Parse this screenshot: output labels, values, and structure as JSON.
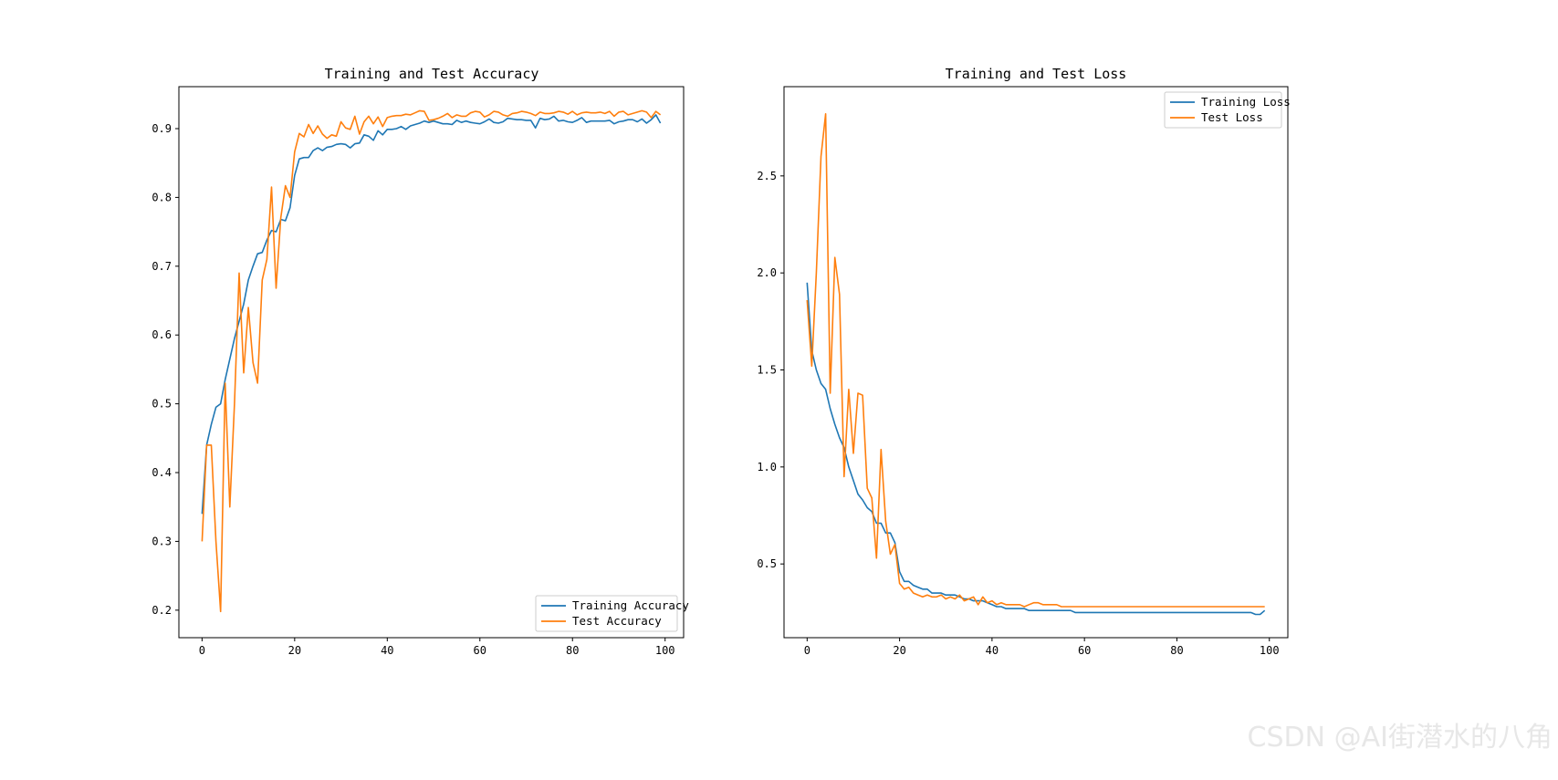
{
  "chart_data": [
    {
      "type": "line",
      "title": "Training and Test Accuracy",
      "xlabel": "",
      "ylabel": "",
      "xlim": [
        -5,
        104
      ],
      "ylim": [
        0.16,
        0.961
      ],
      "xticks": [
        0,
        20,
        40,
        60,
        80,
        100
      ],
      "yticks": [
        0.2,
        0.3,
        0.4,
        0.5,
        0.6,
        0.7,
        0.8,
        0.9
      ],
      "legend_position": "lower-right",
      "grid": false,
      "series": [
        {
          "name": "Training Accuracy",
          "color": "#1f77b4",
          "x": [
            0,
            1,
            2,
            3,
            4,
            5,
            6,
            7,
            8,
            9,
            10,
            11,
            12,
            13,
            14,
            15,
            16,
            17,
            18,
            19,
            20,
            21,
            22,
            23,
            24,
            25,
            26,
            27,
            28,
            29,
            30,
            31,
            32,
            33,
            34,
            35,
            36,
            37,
            38,
            39,
            40,
            41,
            42,
            43,
            44,
            45,
            46,
            47,
            48,
            49,
            50,
            51,
            52,
            53,
            54,
            55,
            56,
            57,
            58,
            59,
            60,
            61,
            62,
            63,
            64,
            65,
            66,
            67,
            68,
            69,
            70,
            71,
            72,
            73,
            74,
            75,
            76,
            77,
            78,
            79,
            80,
            81,
            82,
            83,
            84,
            85,
            86,
            87,
            88,
            89,
            90,
            91,
            92,
            93,
            94,
            95,
            96,
            97,
            98,
            99
          ],
          "values": [
            0.34,
            0.44,
            0.47,
            0.495,
            0.5,
            0.535,
            0.565,
            0.595,
            0.62,
            0.645,
            0.68,
            0.7,
            0.718,
            0.72,
            0.738,
            0.752,
            0.75,
            0.768,
            0.766,
            0.785,
            0.832,
            0.856,
            0.858,
            0.858,
            0.868,
            0.872,
            0.868,
            0.873,
            0.874,
            0.877,
            0.878,
            0.877,
            0.872,
            0.878,
            0.879,
            0.891,
            0.889,
            0.883,
            0.897,
            0.891,
            0.899,
            0.899,
            0.9,
            0.903,
            0.899,
            0.904,
            0.906,
            0.908,
            0.911,
            0.909,
            0.911,
            0.909,
            0.907,
            0.907,
            0.906,
            0.912,
            0.909,
            0.911,
            0.909,
            0.908,
            0.907,
            0.91,
            0.914,
            0.909,
            0.908,
            0.91,
            0.915,
            0.914,
            0.913,
            0.913,
            0.912,
            0.912,
            0.901,
            0.915,
            0.913,
            0.914,
            0.918,
            0.911,
            0.912,
            0.91,
            0.909,
            0.912,
            0.916,
            0.909,
            0.911,
            0.911,
            0.911,
            0.911,
            0.912,
            0.907,
            0.91,
            0.911,
            0.913,
            0.913,
            0.91,
            0.914,
            0.908,
            0.913,
            0.92,
            0.908
          ]
        },
        {
          "name": "Test Accuracy",
          "color": "#ff7f0e",
          "x": [
            0,
            1,
            2,
            3,
            4,
            5,
            6,
            7,
            8,
            9,
            10,
            11,
            12,
            13,
            14,
            15,
            16,
            17,
            18,
            19,
            20,
            21,
            22,
            23,
            24,
            25,
            26,
            27,
            28,
            29,
            30,
            31,
            32,
            33,
            34,
            35,
            36,
            37,
            38,
            39,
            40,
            41,
            42,
            43,
            44,
            45,
            46,
            47,
            48,
            49,
            50,
            51,
            52,
            53,
            54,
            55,
            56,
            57,
            58,
            59,
            60,
            61,
            62,
            63,
            64,
            65,
            66,
            67,
            68,
            69,
            70,
            71,
            72,
            73,
            74,
            75,
            76,
            77,
            78,
            79,
            80,
            81,
            82,
            83,
            84,
            85,
            86,
            87,
            88,
            89,
            90,
            91,
            92,
            93,
            94,
            95,
            96,
            97,
            98,
            99
          ],
          "values": [
            0.3,
            0.44,
            0.44,
            0.3,
            0.198,
            0.53,
            0.35,
            0.5,
            0.69,
            0.545,
            0.64,
            0.56,
            0.53,
            0.68,
            0.71,
            0.815,
            0.668,
            0.77,
            0.817,
            0.8,
            0.866,
            0.893,
            0.888,
            0.906,
            0.893,
            0.904,
            0.892,
            0.886,
            0.891,
            0.889,
            0.91,
            0.901,
            0.899,
            0.918,
            0.892,
            0.91,
            0.918,
            0.907,
            0.917,
            0.903,
            0.916,
            0.918,
            0.919,
            0.919,
            0.921,
            0.92,
            0.923,
            0.926,
            0.925,
            0.912,
            0.913,
            0.915,
            0.918,
            0.922,
            0.916,
            0.92,
            0.918,
            0.918,
            0.923,
            0.925,
            0.924,
            0.917,
            0.92,
            0.925,
            0.924,
            0.92,
            0.918,
            0.922,
            0.923,
            0.925,
            0.924,
            0.922,
            0.919,
            0.924,
            0.922,
            0.922,
            0.923,
            0.925,
            0.924,
            0.921,
            0.925,
            0.92,
            0.923,
            0.924,
            0.923,
            0.923,
            0.924,
            0.922,
            0.925,
            0.918,
            0.924,
            0.925,
            0.92,
            0.922,
            0.924,
            0.926,
            0.924,
            0.916,
            0.925,
            0.92
          ]
        }
      ]
    },
    {
      "type": "line",
      "title": "Training and Test Loss",
      "xlabel": "",
      "ylabel": "",
      "xlim": [
        -5,
        104
      ],
      "ylim": [
        0.12,
        2.96
      ],
      "xticks": [
        0,
        20,
        40,
        60,
        80,
        100
      ],
      "yticks": [
        0.5,
        1.0,
        1.5,
        2.0,
        2.5
      ],
      "legend_position": "upper-right",
      "grid": false,
      "series": [
        {
          "name": "Training Loss",
          "color": "#1f77b4",
          "x": [
            0,
            1,
            2,
            3,
            4,
            5,
            6,
            7,
            8,
            9,
            10,
            11,
            12,
            13,
            14,
            15,
            16,
            17,
            18,
            19,
            20,
            21,
            22,
            23,
            24,
            25,
            26,
            27,
            28,
            29,
            30,
            31,
            32,
            33,
            34,
            35,
            36,
            37,
            38,
            39,
            40,
            41,
            42,
            43,
            44,
            45,
            46,
            47,
            48,
            49,
            50,
            51,
            52,
            53,
            54,
            55,
            56,
            57,
            58,
            59,
            60,
            61,
            62,
            63,
            64,
            65,
            66,
            67,
            68,
            69,
            70,
            71,
            72,
            73,
            74,
            75,
            76,
            77,
            78,
            79,
            80,
            81,
            82,
            83,
            84,
            85,
            86,
            87,
            88,
            89,
            90,
            91,
            92,
            93,
            94,
            95,
            96,
            97,
            98,
            99
          ],
          "values": [
            1.95,
            1.6,
            1.5,
            1.43,
            1.4,
            1.3,
            1.22,
            1.15,
            1.1,
            1.0,
            0.93,
            0.86,
            0.83,
            0.79,
            0.77,
            0.71,
            0.71,
            0.66,
            0.66,
            0.61,
            0.46,
            0.41,
            0.41,
            0.39,
            0.38,
            0.37,
            0.37,
            0.35,
            0.35,
            0.35,
            0.34,
            0.34,
            0.34,
            0.33,
            0.32,
            0.32,
            0.31,
            0.31,
            0.31,
            0.3,
            0.29,
            0.28,
            0.28,
            0.27,
            0.27,
            0.27,
            0.27,
            0.27,
            0.26,
            0.26,
            0.26,
            0.26,
            0.26,
            0.26,
            0.26,
            0.26,
            0.26,
            0.26,
            0.25,
            0.25,
            0.25,
            0.25,
            0.25,
            0.25,
            0.25,
            0.25,
            0.25,
            0.25,
            0.25,
            0.25,
            0.25,
            0.25,
            0.25,
            0.25,
            0.25,
            0.25,
            0.25,
            0.25,
            0.25,
            0.25,
            0.25,
            0.25,
            0.25,
            0.25,
            0.25,
            0.25,
            0.25,
            0.25,
            0.25,
            0.25,
            0.25,
            0.25,
            0.25,
            0.25,
            0.25,
            0.25,
            0.25,
            0.24,
            0.24,
            0.26
          ]
        },
        {
          "name": "Test Loss",
          "color": "#ff7f0e",
          "x": [
            0,
            1,
            2,
            3,
            4,
            5,
            6,
            7,
            8,
            9,
            10,
            11,
            12,
            13,
            14,
            15,
            16,
            17,
            18,
            19,
            20,
            21,
            22,
            23,
            24,
            25,
            26,
            27,
            28,
            29,
            30,
            31,
            32,
            33,
            34,
            35,
            36,
            37,
            38,
            39,
            40,
            41,
            42,
            43,
            44,
            45,
            46,
            47,
            48,
            49,
            50,
            51,
            52,
            53,
            54,
            55,
            56,
            57,
            58,
            59,
            60,
            61,
            62,
            63,
            64,
            65,
            66,
            67,
            68,
            69,
            70,
            71,
            72,
            73,
            74,
            75,
            76,
            77,
            78,
            79,
            80,
            81,
            82,
            83,
            84,
            85,
            86,
            87,
            88,
            89,
            90,
            91,
            92,
            93,
            94,
            95,
            96,
            97,
            98,
            99
          ],
          "values": [
            1.86,
            1.52,
            2.0,
            2.6,
            2.82,
            1.38,
            2.08,
            1.89,
            0.95,
            1.4,
            1.07,
            1.38,
            1.37,
            0.89,
            0.84,
            0.53,
            1.09,
            0.72,
            0.55,
            0.6,
            0.4,
            0.37,
            0.38,
            0.35,
            0.34,
            0.33,
            0.34,
            0.33,
            0.33,
            0.34,
            0.32,
            0.33,
            0.32,
            0.34,
            0.31,
            0.32,
            0.33,
            0.29,
            0.33,
            0.3,
            0.31,
            0.29,
            0.3,
            0.29,
            0.29,
            0.29,
            0.29,
            0.28,
            0.29,
            0.3,
            0.3,
            0.29,
            0.29,
            0.29,
            0.29,
            0.28,
            0.28,
            0.28,
            0.28,
            0.28,
            0.28,
            0.28,
            0.28,
            0.28,
            0.28,
            0.28,
            0.28,
            0.28,
            0.28,
            0.28,
            0.28,
            0.28,
            0.28,
            0.28,
            0.28,
            0.28,
            0.28,
            0.28,
            0.28,
            0.28,
            0.28,
            0.28,
            0.28,
            0.28,
            0.28,
            0.28,
            0.28,
            0.28,
            0.28,
            0.28,
            0.28,
            0.28,
            0.28,
            0.28,
            0.28,
            0.28,
            0.28,
            0.28,
            0.28,
            0.28
          ]
        }
      ]
    }
  ],
  "watermark": "CSDN @AI街潜水的八角"
}
